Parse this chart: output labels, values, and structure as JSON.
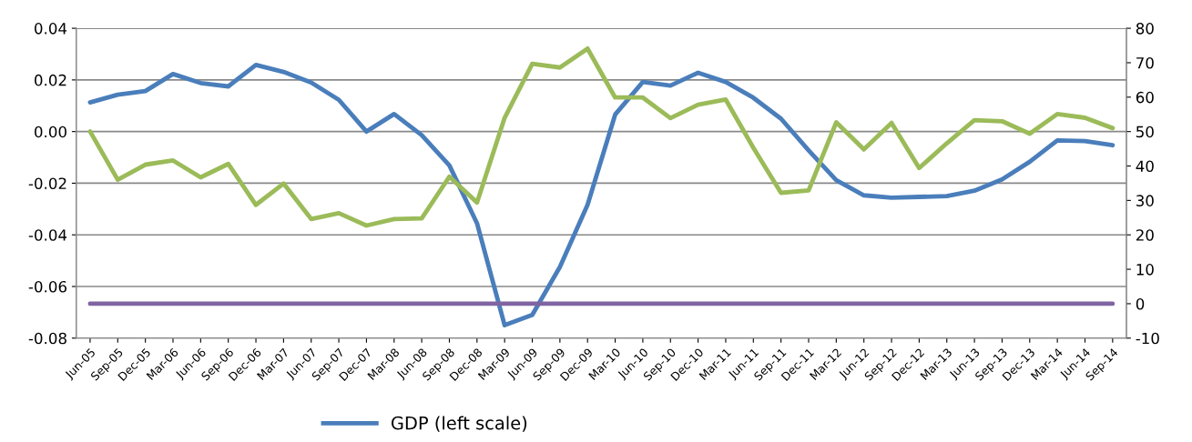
{
  "chart_data": {
    "type": "line",
    "categories": [
      "Jun-05",
      "Sep-05",
      "Dec-05",
      "Mar-06",
      "Jun-06",
      "Sep-06",
      "Dec-06",
      "Mar-07",
      "Jun-07",
      "Sep-07",
      "Dec-07",
      "Mar-08",
      "Jun-08",
      "Sep-08",
      "Dec-08",
      "Mar-09",
      "Jun-09",
      "Sep-09",
      "Dec-09",
      "Mar-10",
      "Jun-10",
      "Sep-10",
      "Dec-10",
      "Mar-11",
      "Jun-11",
      "Sep-11",
      "Dec-11",
      "Mar-12",
      "Jun-12",
      "Sep-12",
      "Dec-12",
      "Mar-13",
      "Jun-13",
      "Sep-13",
      "Dec-13",
      "Mar-14",
      "Jun-14",
      "Sep-14"
    ],
    "series": [
      {
        "name": "GDP (left scale)",
        "color": "#4a7ebb",
        "values": [
          0.0113,
          0.0143,
          0.0157,
          0.0223,
          0.0188,
          0.0175,
          0.0258,
          0.0231,
          0.019,
          0.0123,
          0.0,
          0.0068,
          -0.0014,
          -0.0131,
          -0.0355,
          -0.075,
          -0.071,
          -0.0524,
          -0.0284,
          0.0066,
          0.0192,
          0.0178,
          0.0228,
          0.0192,
          0.0131,
          0.005,
          -0.0073,
          -0.0188,
          -0.0247,
          -0.0256,
          -0.0253,
          -0.025,
          -0.0229,
          -0.0185,
          -0.0117,
          -0.0034,
          -0.0037,
          -0.0053
        ]
      },
      {
        "color": "#9bbb59",
        "axis": "y2",
        "values": [
          50,
          36.0,
          40.4,
          41.6,
          36.7,
          40.6,
          28.7,
          34.9,
          24.6,
          26.3,
          22.7,
          24.6,
          24.8,
          36.9,
          29.4,
          54.0,
          69.7,
          68.6,
          74.1,
          59.9,
          59.9,
          53.9,
          57.8,
          59.3,
          45.3,
          32.2,
          32.9,
          52.7,
          44.8,
          52.5,
          39.4,
          46.6,
          53.3,
          53.0,
          49.4,
          55.1,
          54.0,
          51.0
        ]
      },
      {
        "color": "#8064a2",
        "axis": "y2",
        "values": [
          0,
          0,
          0,
          0,
          0,
          0,
          0,
          0,
          0,
          0,
          0,
          0,
          0,
          0,
          0,
          0,
          0,
          0,
          0,
          0,
          0,
          0,
          0,
          0,
          0,
          0,
          0,
          0,
          0,
          0,
          0,
          0,
          0,
          0,
          0,
          0,
          0,
          0
        ]
      }
    ],
    "ylim": [
      -0.08,
      0.04
    ],
    "yticks": [
      {
        "value": -0.08,
        "label": "-0.08"
      },
      {
        "value": -0.06,
        "label": "-0.06"
      },
      {
        "value": -0.04,
        "label": "-0.04"
      },
      {
        "value": -0.02,
        "label": "-0.02"
      },
      {
        "value": 0,
        "label": "0.00"
      },
      {
        "value": 0.02,
        "label": "0.02"
      },
      {
        "value": 0.04,
        "label": "0.04"
      }
    ],
    "y2lim": [
      -10,
      80
    ],
    "y2ticks": [
      -10,
      0,
      10,
      20,
      30,
      40,
      50,
      60,
      70,
      80
    ],
    "grid": "y",
    "legend": "bottom",
    "marker": "none",
    "line_style": "solid"
  }
}
